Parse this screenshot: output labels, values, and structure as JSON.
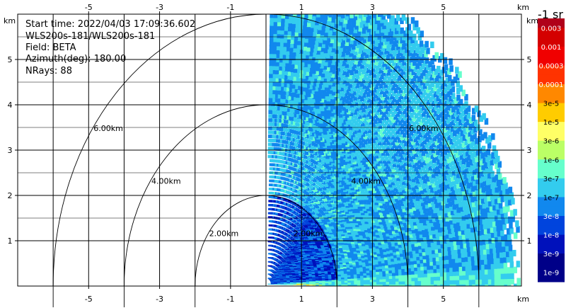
{
  "info": {
    "start_time": "Start time: 2022/04/03 17:09:36.602",
    "instrument": "WLS200s-181/WLS200s-181",
    "field": "Field: BETA",
    "azimuth": "Azimuth(deg): 180.00",
    "nrays": "NRays: 88"
  },
  "axes": {
    "unit_label": "km",
    "x_ticks": [
      "-5",
      "-3",
      "-1",
      "1",
      "3",
      "5"
    ],
    "x_tick_values": [
      -5,
      -3,
      -1,
      1,
      3,
      5
    ],
    "y_ticks": [
      "1",
      "2",
      "3",
      "4",
      "5"
    ],
    "y_tick_values": [
      1,
      2,
      3,
      4,
      5
    ],
    "xlim": [
      -7,
      7.2
    ],
    "ylim": [
      0,
      6
    ]
  },
  "range_rings": [
    {
      "value": 2,
      "label": "2.00km"
    },
    {
      "value": 4,
      "label": "4.00km"
    },
    {
      "value": 6,
      "label": "6.00km"
    }
  ],
  "colorbar": {
    "title": "-1 sr",
    "labels": [
      "0.003",
      "0.001",
      "0.0003",
      "0.0001",
      "3e-5",
      "1e-5",
      "3e-6",
      "1e-6",
      "3e-7",
      "1e-7",
      "3e-8",
      "1e-8",
      "3e-9",
      "1e-9"
    ],
    "colors": [
      "#b0001a",
      "#d40000",
      "#f00000",
      "#ff3300",
      "#ff8800",
      "#ffcc00",
      "#ffff66",
      "#bbff66",
      "#66ffcc",
      "#33ccee",
      "#1188ee",
      "#0044dd",
      "#0011bb",
      "#000088"
    ]
  }
}
